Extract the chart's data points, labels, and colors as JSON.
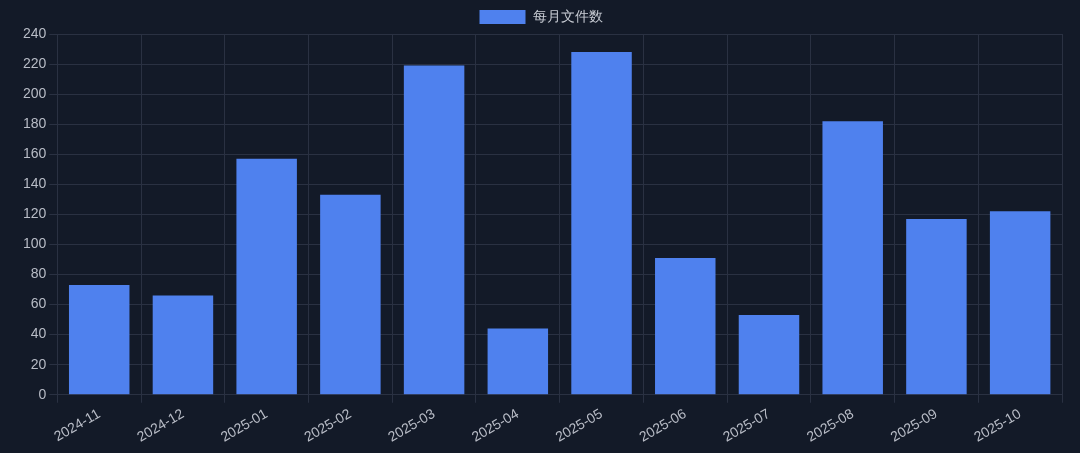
{
  "chart_data": {
    "type": "bar",
    "categories": [
      "2024-11",
      "2024-12",
      "2025-01",
      "2025-02",
      "2025-03",
      "2025-04",
      "2025-05",
      "2025-06",
      "2025-07",
      "2025-08",
      "2025-09",
      "2025-10"
    ],
    "series": [
      {
        "name": "每月文件数",
        "color": "#4f81ee",
        "values": [
          73,
          66,
          157,
          133,
          219,
          44,
          228,
          91,
          53,
          182,
          117,
          122
        ]
      }
    ],
    "ylim": [
      0,
      240
    ],
    "yticks": [
      0,
      20,
      40,
      60,
      80,
      100,
      120,
      140,
      160,
      180,
      200,
      220,
      240
    ],
    "grid": true,
    "legend": "top"
  }
}
